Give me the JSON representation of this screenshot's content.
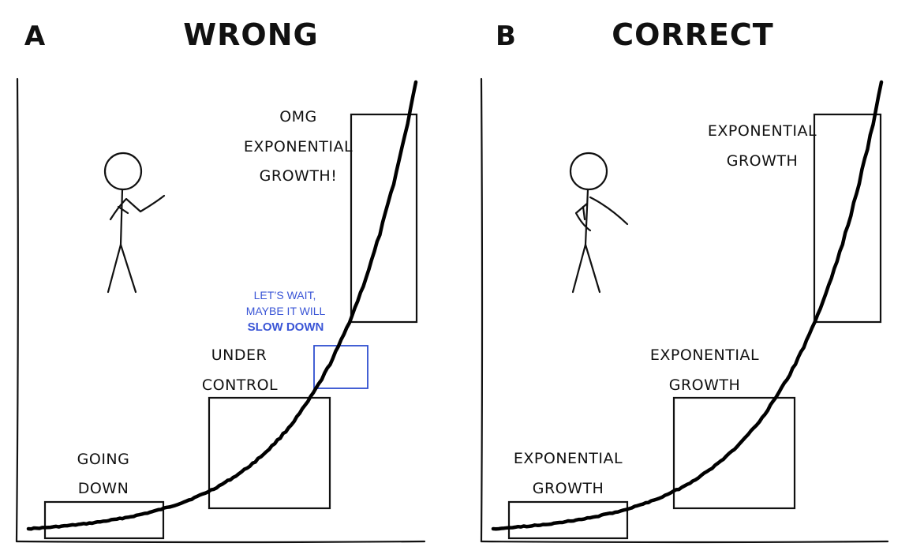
{
  "panels": [
    {
      "letter": "A",
      "title": "WRONG",
      "labels": {
        "going_down": [
          "GOING",
          "DOWN"
        ],
        "under_control": [
          "UNDER",
          "CONTROL"
        ],
        "omg": [
          "OMG",
          "EXPONENTIAL",
          "GROWTH!"
        ]
      },
      "note": [
        "LET’S WAIT,",
        "MAYBE IT WILL",
        "SLOW DOWN"
      ]
    },
    {
      "letter": "B",
      "title": "CORRECT",
      "labels": {
        "low": [
          "EXPONENTIAL",
          "GROWTH"
        ],
        "mid": [
          "EXPONENTIAL",
          "GROWTH"
        ],
        "high": [
          "EXPONENTIAL",
          "GROWTH"
        ]
      }
    }
  ],
  "colors": {
    "ink": "#111111",
    "note": "#3a55d6"
  },
  "icons": [
    "stick-figure-icon"
  ]
}
